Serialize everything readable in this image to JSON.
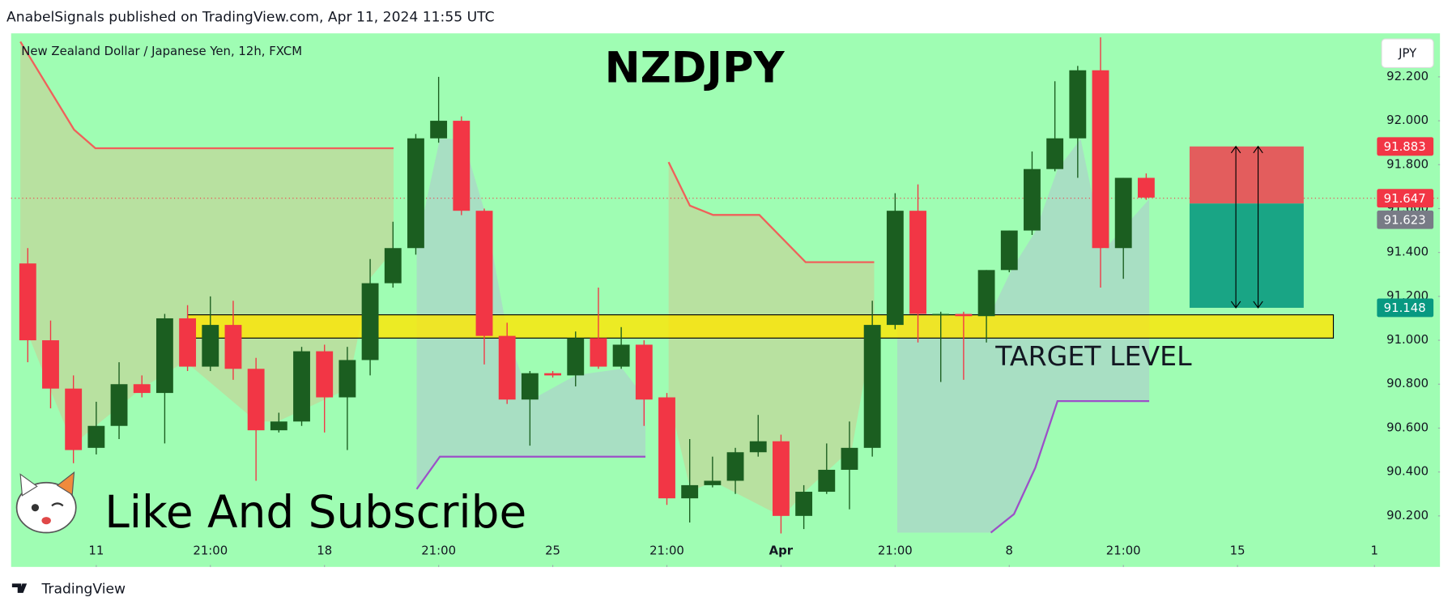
{
  "chart_data": {
    "type": "candlestick",
    "header": "AnabelSignals published on TradingView.com, Apr 11, 2024 11:55 UTC",
    "subtitle": "New Zealand Dollar / Japanese Yen, 12h, FXCM",
    "title": "NZDJPY",
    "currency": "JPY",
    "annotation": "Like And Subscribe",
    "target_zone": {
      "label": "TARGET LEVEL",
      "low": 91.01,
      "high": 91.116
    },
    "footer": "TradingView",
    "up_color": "#1b5e20",
    "down_color": "#f23645",
    "open": [
      91.35,
      91.0,
      90.78,
      90.51,
      90.61,
      90.8,
      90.76,
      91.1,
      90.88,
      91.07,
      90.87,
      90.59,
      90.63,
      90.95,
      90.74,
      90.91,
      91.26,
      91.42,
      91.92,
      92.0,
      91.59,
      91.02,
      90.73,
      90.85,
      90.84,
      91.01,
      90.88,
      90.98,
      90.74,
      90.28,
      90.34,
      90.36,
      90.49,
      90.54,
      90.2,
      90.31,
      90.41,
      90.51,
      91.07,
      91.59,
      91.12,
      91.12,
      91.11,
      91.32,
      91.5,
      91.78,
      91.92,
      92.23,
      91.42,
      91.74
    ],
    "high": [
      91.42,
      91.09,
      90.84,
      90.72,
      90.9,
      90.84,
      91.12,
      91.16,
      91.2,
      91.18,
      90.92,
      90.67,
      90.97,
      90.98,
      90.97,
      91.37,
      91.54,
      91.94,
      92.2,
      92.02,
      91.6,
      91.08,
      90.86,
      90.86,
      91.04,
      91.24,
      91.06,
      91.0,
      90.76,
      90.55,
      90.47,
      90.51,
      90.66,
      90.57,
      90.34,
      90.53,
      90.63,
      91.18,
      91.67,
      91.71,
      91.13,
      91.13,
      91.32,
      91.5,
      91.86,
      92.18,
      92.25,
      92.38,
      91.74,
      91.76
    ],
    "low": [
      90.9,
      90.69,
      90.44,
      90.48,
      90.55,
      90.74,
      90.53,
      90.86,
      90.86,
      90.82,
      90.36,
      90.58,
      90.61,
      90.58,
      90.5,
      90.84,
      91.24,
      91.39,
      91.9,
      91.57,
      90.89,
      90.71,
      90.52,
      90.83,
      90.79,
      90.87,
      90.87,
      90.61,
      90.25,
      90.17,
      90.33,
      90.3,
      90.47,
      90.12,
      90.14,
      90.3,
      90.23,
      90.47,
      91.05,
      90.99,
      90.81,
      90.82,
      90.99,
      91.31,
      91.48,
      91.77,
      91.74,
      91.24,
      91.28,
      91.64
    ],
    "close": [
      91.0,
      90.78,
      90.5,
      90.61,
      90.8,
      90.76,
      91.1,
      90.88,
      91.07,
      90.87,
      90.59,
      90.63,
      90.95,
      90.74,
      90.91,
      91.26,
      91.42,
      91.92,
      92.0,
      91.59,
      91.02,
      90.73,
      90.85,
      90.84,
      91.01,
      90.88,
      90.98,
      90.73,
      90.28,
      90.34,
      90.36,
      90.49,
      90.54,
      90.2,
      90.31,
      90.41,
      90.51,
      91.07,
      91.59,
      91.12,
      91.12,
      91.11,
      91.32,
      91.5,
      91.78,
      91.92,
      92.23,
      91.42,
      91.74,
      91.65
    ],
    "xlim": [
      -0.73,
      61.87
    ],
    "xticks": [
      {
        "value": 3,
        "label": "11"
      },
      {
        "value": 8,
        "label": "21:00"
      },
      {
        "value": 13,
        "label": "18"
      },
      {
        "value": 18,
        "label": "21:00"
      },
      {
        "value": 23,
        "label": "25"
      },
      {
        "value": 28,
        "label": "21:00"
      },
      {
        "value": 33,
        "label": "Apr"
      },
      {
        "value": 38,
        "label": "21:00"
      },
      {
        "value": 43,
        "label": "8"
      },
      {
        "value": 48,
        "label": "21:00"
      },
      {
        "value": 53,
        "label": "15"
      },
      {
        "value": 59,
        "label": "1"
      }
    ],
    "ylim": [
      89.976,
      92.394
    ],
    "yticks": [
      {
        "value": 90.2,
        "label": "90.200"
      },
      {
        "value": 90.4,
        "label": "90.400"
      },
      {
        "value": 90.6,
        "label": "90.600"
      },
      {
        "value": 90.8,
        "label": "90.800"
      },
      {
        "value": 91.0,
        "label": "91.000"
      },
      {
        "value": 91.2,
        "label": "91.200"
      },
      {
        "value": 91.4,
        "label": "91.400"
      },
      {
        "value": 91.6,
        "label": "91.600"
      },
      {
        "value": 91.8,
        "label": "91.800"
      },
      {
        "value": 92.0,
        "label": "92.000"
      },
      {
        "value": 92.2,
        "label": "92.200"
      }
    ],
    "price_labels": [
      {
        "value": 91.883,
        "color": "#f23645"
      },
      {
        "value": 91.647,
        "color": "#f23645"
      },
      {
        "value": 91.623,
        "color": "#787b86"
      },
      {
        "value": 91.148,
        "color": "#089981"
      }
    ]
  }
}
